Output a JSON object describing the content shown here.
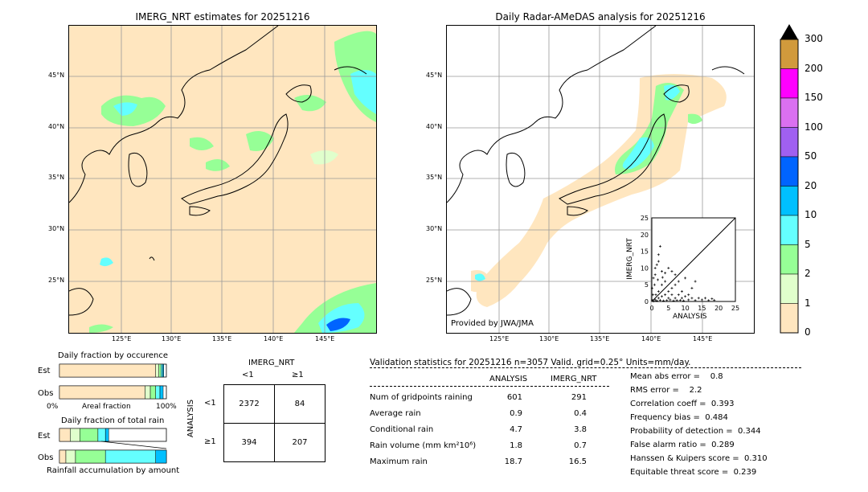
{
  "left_map": {
    "title": "IMERG_NRT estimates for 20251216",
    "lat_ticks": [
      "45°N",
      "40°N",
      "35°N",
      "30°N",
      "25°N"
    ],
    "lon_ticks": [
      "125°E",
      "130°E",
      "135°E",
      "140°E",
      "145°E"
    ]
  },
  "right_map": {
    "title": "Daily Radar-AMeDAS analysis for 20251216",
    "lat_ticks": [
      "45°N",
      "40°N",
      "35°N",
      "30°N",
      "25°N"
    ],
    "lon_ticks": [
      "125°E",
      "130°E",
      "135°E",
      "140°E",
      "145°E"
    ],
    "credit": "Provided by JWA/JMA"
  },
  "colorbar": {
    "labels": [
      "300",
      "200",
      "150",
      "100",
      "50",
      "20",
      "10",
      "5",
      "2",
      "1",
      "0"
    ],
    "colors": [
      "#d19a3c",
      "#ff00ff",
      "#da70f0",
      "#a060f0",
      "#0064ff",
      "#00c0ff",
      "#64ffff",
      "#96ff96",
      "#e0ffcc",
      "#ffe6bf"
    ]
  },
  "scatter": {
    "xlabel": "ANALYSIS",
    "ylabel": "IMERG_NRT",
    "ticks": [
      "0",
      "5",
      "10",
      "15",
      "20",
      "25"
    ]
  },
  "fraction_occurrence": {
    "title": "Daily fraction by occurence",
    "rows": [
      "Est",
      "Obs"
    ],
    "axis_left": "0%",
    "axis_mid": "Areal fraction",
    "axis_right": "100%"
  },
  "fraction_rain": {
    "title": "Daily fraction of total rain",
    "rows": [
      "Est",
      "Obs"
    ],
    "footer": "Rainfall accumulation by amount"
  },
  "contingency": {
    "header": "IMERG_NRT",
    "col_labels": [
      "<1",
      "≥1"
    ],
    "row_axis": "ANALYSIS",
    "row_labels": [
      "<1",
      "≥1"
    ],
    "cells": [
      [
        "2372",
        "84"
      ],
      [
        "394",
        "207"
      ]
    ]
  },
  "validation": {
    "title": "Validation statistics for 20251216  n=3057 Valid. grid=0.25° Units=mm/day.",
    "col_analysis": "ANALYSIS",
    "col_imerg": "IMERG_NRT",
    "rows": [
      {
        "label": "Num of gridpoints raining",
        "analysis": "601",
        "imerg": "291"
      },
      {
        "label": "Average rain",
        "analysis": "0.9",
        "imerg": "0.4"
      },
      {
        "label": "Conditional rain",
        "analysis": "4.7",
        "imerg": "3.8"
      },
      {
        "label": "Rain volume (mm km²10⁶)",
        "analysis": "1.8",
        "imerg": "0.7"
      },
      {
        "label": "Maximum rain",
        "analysis": "18.7",
        "imerg": "16.5"
      }
    ],
    "scores": [
      "Mean abs error =    0.8",
      "RMS error =    2.2",
      "Correlation coeff =  0.393",
      "Frequency bias =  0.484",
      "Probability of detection =  0.344",
      "False alarm ratio =  0.289",
      "Hanssen & Kuipers score =  0.310",
      "Equitable threat score =  0.239"
    ]
  },
  "chart_data": [
    {
      "type": "heatmap",
      "title": "IMERG_NRT estimates for 20251216",
      "xlabel": "",
      "ylabel": "",
      "x_ticks": [
        "125°E",
        "130°E",
        "135°E",
        "140°E",
        "145°E"
      ],
      "y_ticks": [
        "45°N",
        "40°N",
        "35°N",
        "30°N",
        "25°N"
      ]
    },
    {
      "type": "heatmap",
      "title": "Daily Radar-AMeDAS analysis for 20251216",
      "x_ticks": [
        "125°E",
        "130°E",
        "135°E",
        "140°E",
        "145°E"
      ],
      "y_ticks": [
        "45°N",
        "40°N",
        "35°N",
        "30°N",
        "25°N"
      ]
    },
    {
      "type": "scatter",
      "xlabel": "ANALYSIS",
      "ylabel": "IMERG_NRT",
      "xlim": [
        0,
        25
      ],
      "ylim": [
        0,
        25
      ],
      "points": [
        [
          0.2,
          0.3
        ],
        [
          0.5,
          0.1
        ],
        [
          1,
          0.5
        ],
        [
          1.2,
          2
        ],
        [
          1.5,
          0.2
        ],
        [
          2,
          1
        ],
        [
          2,
          3
        ],
        [
          2.5,
          0.4
        ],
        [
          3,
          1.5
        ],
        [
          3,
          5
        ],
        [
          3.5,
          0.2
        ],
        [
          4,
          2
        ],
        [
          4,
          6
        ],
        [
          4.5,
          0.3
        ],
        [
          5,
          1
        ],
        [
          5,
          3
        ],
        [
          5.5,
          0.5
        ],
        [
          6,
          2
        ],
        [
          6,
          4
        ],
        [
          6.5,
          0.2
        ],
        [
          7,
          1
        ],
        [
          7,
          5
        ],
        [
          7.5,
          0.3
        ],
        [
          8,
          2
        ],
        [
          8,
          6
        ],
        [
          8.5,
          0.4
        ],
        [
          9,
          1
        ],
        [
          9,
          3
        ],
        [
          9.5,
          0.2
        ],
        [
          10,
          1.5
        ],
        [
          10,
          7
        ],
        [
          11,
          0.5
        ],
        [
          11,
          2
        ],
        [
          12,
          1
        ],
        [
          12,
          4
        ],
        [
          13,
          0.3
        ],
        [
          13,
          6
        ],
        [
          14,
          1
        ],
        [
          15,
          0.5
        ],
        [
          16,
          1
        ],
        [
          17,
          0.3
        ],
        [
          18,
          0.8
        ],
        [
          18.7,
          0.4
        ],
        [
          1,
          8
        ],
        [
          1.5,
          11
        ],
        [
          2,
          14
        ],
        [
          2.5,
          16.5
        ],
        [
          1,
          10
        ],
        [
          0.5,
          7
        ],
        [
          3,
          9
        ],
        [
          2,
          12
        ],
        [
          4,
          8.5
        ],
        [
          0.8,
          5
        ],
        [
          6,
          9
        ],
        [
          7,
          8
        ],
        [
          0.3,
          2
        ],
        [
          0.1,
          4
        ],
        [
          1.8,
          6.5
        ],
        [
          3.2,
          7.2
        ],
        [
          5,
          10
        ]
      ]
    },
    {
      "type": "bar",
      "title": "Daily fraction by occurence",
      "categories": [
        "Est",
        "Obs"
      ],
      "xlabel": "Areal fraction",
      "xlim": [
        0,
        100
      ],
      "series": [
        {
          "values": [
            90,
            80
          ]
        },
        {
          "values": [
            3,
            5
          ]
        },
        {
          "values": [
            2,
            5
          ]
        },
        {
          "values": [
            1.5,
            4
          ]
        },
        {
          "values": [
            1,
            3
          ]
        }
      ]
    },
    {
      "type": "bar",
      "title": "Daily fraction of total rain",
      "categories": [
        "Est",
        "Obs"
      ],
      "xlabel": "Rainfall accumulation by amount",
      "xlim": [
        0,
        100
      ],
      "series": [
        {
          "values": [
            10,
            6
          ]
        },
        {
          "values": [
            9,
            9
          ]
        },
        {
          "values": [
            17,
            28
          ]
        },
        {
          "values": [
            7,
            47
          ]
        },
        {
          "values": [
            3,
            10
          ]
        }
      ]
    }
  ]
}
